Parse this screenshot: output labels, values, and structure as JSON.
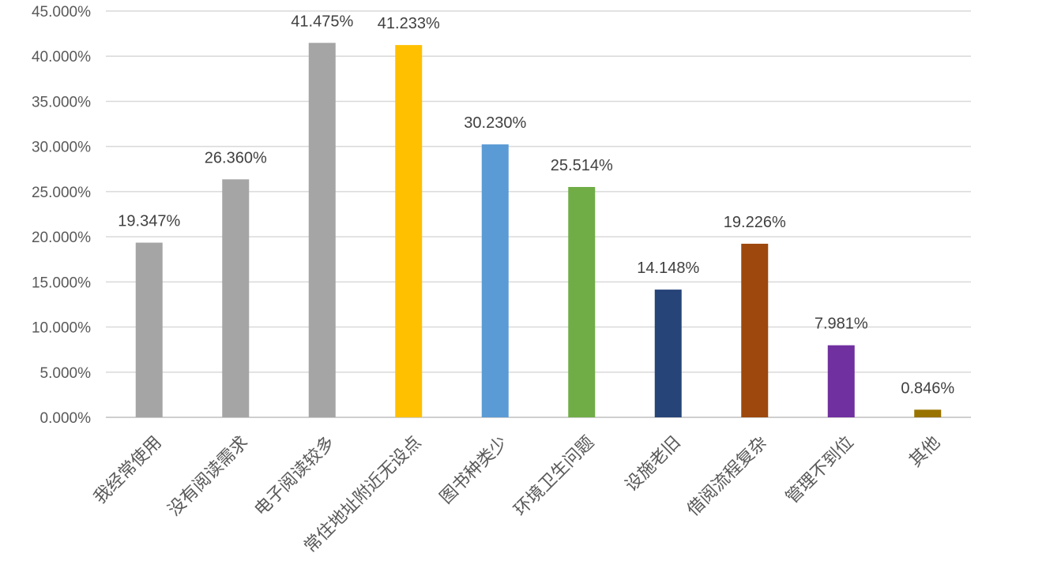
{
  "chart_data": {
    "type": "bar",
    "categories": [
      "我经常使用",
      "没有阅读需求",
      "电子阅读较多",
      "常住地址附近无设点",
      "图书种类少",
      "环境卫生问题",
      "设施老旧",
      "借阅流程复杂",
      "管理不到位",
      "其他"
    ],
    "values": [
      19.347,
      26.36,
      41.475,
      41.233,
      30.23,
      25.514,
      14.148,
      19.226,
      7.981,
      0.846
    ],
    "data_labels": [
      "19.347%",
      "26.360%",
      "41.475%",
      "41.233%",
      "30.230%",
      "25.514%",
      "14.148%",
      "19.226%",
      "7.981%",
      "0.846%"
    ],
    "colors": [
      "#a5a5a5",
      "#a5a5a5",
      "#a5a5a5",
      "#ffc000",
      "#5b9bd5",
      "#70ad47",
      "#264478",
      "#9e480e",
      "#7030a0",
      "#997300"
    ],
    "ylim": [
      0,
      45
    ],
    "yticks": [
      "0.000%",
      "5.000%",
      "10.000%",
      "15.000%",
      "20.000%",
      "25.000%",
      "30.000%",
      "35.000%",
      "40.000%",
      "45.000%"
    ],
    "grid": true,
    "legend": "none",
    "title": "",
    "xlabel": "",
    "ylabel": ""
  }
}
